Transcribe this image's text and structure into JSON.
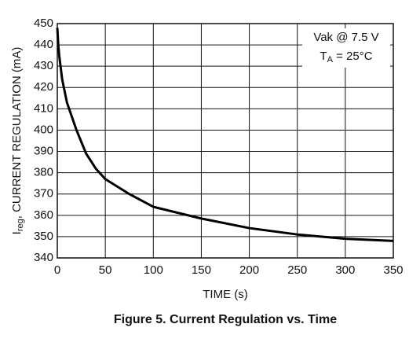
{
  "chart_data": {
    "type": "line",
    "caption": "Figure 5. Current Regulation vs. Time",
    "xlabel": "TIME (s)",
    "ylabel": [
      "I",
      "reg",
      ", CURRENT REGULATION (mA)"
    ],
    "annotation": {
      "line1": "Vak @ 7.5 V",
      "line2": [
        "T",
        "A",
        " = 25°C"
      ]
    },
    "x": [
      0,
      1,
      2,
      5,
      10,
      20,
      30,
      40,
      50,
      75,
      100,
      150,
      200,
      250,
      300,
      350
    ],
    "series": [
      {
        "name": "Ireg",
        "color": "#000000",
        "values": [
          448,
          440,
          435,
          424,
          413,
          400,
          389,
          382,
          377,
          370,
          364,
          358.5,
          354,
          351,
          349,
          348
        ]
      }
    ],
    "xlim": [
      0,
      350
    ],
    "xticks": [
      0,
      50,
      100,
      150,
      200,
      250,
      300,
      350
    ],
    "ylim": [
      340,
      450
    ],
    "yticks": [
      340,
      350,
      360,
      370,
      380,
      390,
      400,
      410,
      420,
      430,
      440,
      450
    ],
    "grid": true
  }
}
